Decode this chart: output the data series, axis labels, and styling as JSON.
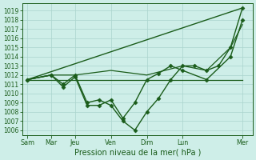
{
  "xlabel": "Pression niveau de la mer( hPa )",
  "background_color": "#ceeee8",
  "line_color": "#1a5c1a",
  "grid_color": "#aad4cc",
  "ylim": [
    1005.5,
    1019.8
  ],
  "yticks": [
    1006,
    1007,
    1008,
    1009,
    1010,
    1011,
    1012,
    1013,
    1014,
    1015,
    1016,
    1017,
    1018,
    1019
  ],
  "xtick_labels": [
    "Sam",
    "Mar",
    "Jeu",
    "Ven",
    "Dim",
    "Lun",
    "Mer"
  ],
  "xtick_positions": [
    0,
    14,
    28,
    49,
    70,
    91,
    126
  ],
  "xlim": [
    -3,
    132
  ],
  "series": [
    {
      "name": "diagonal_trend",
      "x": [
        0,
        126
      ],
      "y": [
        1011.5,
        1019.3
      ],
      "marker": null,
      "markersize": 0,
      "linewidth": 1.0
    },
    {
      "name": "flat_line",
      "x": [
        0,
        91,
        126
      ],
      "y": [
        1011.5,
        1011.5,
        1011.5
      ],
      "marker": null,
      "markersize": 0,
      "linewidth": 0.9
    },
    {
      "name": "medium_line",
      "x": [
        0,
        14,
        28,
        49,
        70,
        91,
        105,
        119,
        126
      ],
      "y": [
        1011.5,
        1012.0,
        1012.0,
        1012.5,
        1012.0,
        1013.0,
        1012.5,
        1015.0,
        1017.5
      ],
      "marker": null,
      "markersize": 0,
      "linewidth": 0.9
    },
    {
      "name": "detailed_line",
      "x": [
        0,
        14,
        21,
        28,
        35,
        42,
        49,
        56,
        63,
        70,
        77,
        84,
        91,
        98,
        105,
        112,
        119,
        126
      ],
      "y": [
        1011.5,
        1012.0,
        1011.0,
        1012.0,
        1009.0,
        1009.3,
        1008.7,
        1007.0,
        1006.0,
        1008.0,
        1009.5,
        1011.5,
        1013.0,
        1013.0,
        1012.5,
        1013.0,
        1015.0,
        1019.3
      ],
      "marker": "D",
      "markersize": 2.5,
      "linewidth": 1.0
    },
    {
      "name": "second_detailed",
      "x": [
        0,
        14,
        21,
        28,
        35,
        42,
        49,
        56,
        63,
        70,
        77,
        84,
        91,
        105,
        119,
        126
      ],
      "y": [
        1011.5,
        1012.0,
        1010.7,
        1011.8,
        1008.7,
        1008.7,
        1009.3,
        1007.3,
        1009.0,
        1011.5,
        1012.2,
        1013.0,
        1012.5,
        1011.5,
        1014.0,
        1018.0
      ],
      "marker": "D",
      "markersize": 2.5,
      "linewidth": 1.0
    }
  ]
}
